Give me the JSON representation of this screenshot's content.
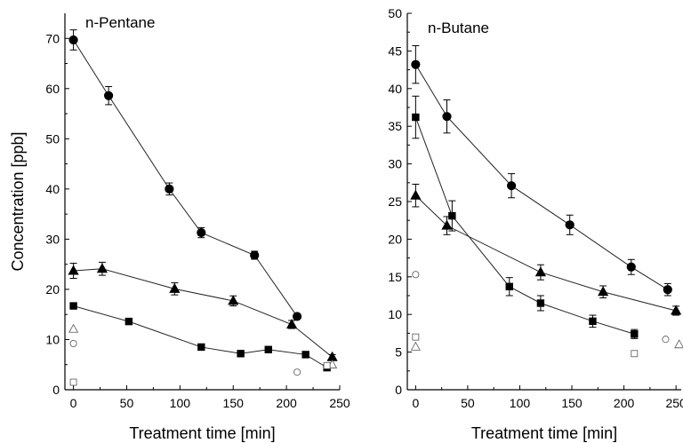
{
  "chart_data": [
    {
      "type": "scatter",
      "title": "n-Pentane",
      "xlabel": "Treatment time [min]",
      "ylabel": "Concentration [ppb]",
      "xlim": [
        -8,
        250
      ],
      "ylim": [
        0,
        75
      ],
      "xticks": [
        0,
        50,
        100,
        150,
        200,
        250
      ],
      "yticks": [
        0,
        10,
        20,
        30,
        40,
        50,
        60,
        70
      ],
      "series": [
        {
          "marker": "circle",
          "filled": true,
          "connected": true,
          "x": [
            0,
            33,
            90,
            120,
            170,
            210
          ],
          "y": [
            69.7,
            58.6,
            40.0,
            31.3,
            26.8,
            14.6
          ],
          "err": [
            2.0,
            1.8,
            1.2,
            1.0,
            0.8,
            0
          ]
        },
        {
          "marker": "triangle",
          "filled": true,
          "connected": true,
          "x": [
            0,
            27,
            95,
            150,
            205,
            243
          ],
          "y": [
            23.7,
            24.1,
            20.1,
            17.7,
            13.0,
            6.5
          ],
          "err": [
            1.5,
            1.3,
            1.2,
            1.0,
            0.8,
            0.5
          ]
        },
        {
          "marker": "square",
          "filled": true,
          "connected": true,
          "x": [
            0,
            52,
            120,
            157,
            183,
            218,
            238
          ],
          "y": [
            16.7,
            13.6,
            8.5,
            7.2,
            8.0,
            7.0,
            4.4
          ],
          "err": [
            0,
            0,
            0,
            0,
            0,
            0,
            0.5
          ]
        },
        {
          "marker": "circle",
          "filled": false,
          "connected": false,
          "x": [
            0,
            210
          ],
          "y": [
            9.2,
            3.5
          ],
          "err": [
            0,
            0
          ]
        },
        {
          "marker": "triangle",
          "filled": false,
          "connected": false,
          "x": [
            0,
            243
          ],
          "y": [
            12.1,
            5.0
          ],
          "err": [
            0,
            0
          ]
        },
        {
          "marker": "square",
          "filled": false,
          "connected": false,
          "x": [
            0,
            238
          ],
          "y": [
            1.5,
            4.8
          ],
          "err": [
            0,
            0
          ]
        }
      ]
    },
    {
      "type": "scatter",
      "title": "n-Butane",
      "xlabel": "Treatment time [min]",
      "ylabel": "",
      "xlim": [
        -8,
        255
      ],
      "ylim": [
        0,
        50
      ],
      "xticks": [
        0,
        50,
        100,
        150,
        200,
        250
      ],
      "yticks": [
        0,
        5,
        10,
        15,
        20,
        25,
        30,
        35,
        40,
        45,
        50
      ],
      "series": [
        {
          "marker": "circle",
          "filled": true,
          "connected": true,
          "x": [
            0,
            30,
            92,
            148,
            207,
            242
          ],
          "y": [
            43.2,
            36.3,
            27.1,
            21.9,
            16.3,
            13.3
          ],
          "err": [
            2.5,
            2.2,
            1.6,
            1.3,
            1.0,
            0.8
          ]
        },
        {
          "marker": "triangle",
          "filled": true,
          "connected": true,
          "x": [
            0,
            30,
            120,
            180,
            250
          ],
          "y": [
            25.8,
            21.8,
            15.6,
            13.0,
            10.5
          ],
          "err": [
            1.5,
            1.2,
            1.0,
            0.8,
            0.6
          ]
        },
        {
          "marker": "square",
          "filled": true,
          "connected": true,
          "x": [
            0,
            35,
            90,
            120,
            170,
            210
          ],
          "y": [
            36.2,
            23.1,
            13.7,
            11.5,
            9.1,
            7.4
          ],
          "err": [
            2.8,
            2.0,
            1.2,
            1.0,
            0.8,
            0.6
          ]
        },
        {
          "marker": "circle",
          "filled": false,
          "connected": false,
          "x": [
            0,
            240
          ],
          "y": [
            15.3,
            6.7
          ],
          "err": [
            0,
            0
          ]
        },
        {
          "marker": "triangle",
          "filled": false,
          "connected": false,
          "x": [
            0,
            253
          ],
          "y": [
            5.7,
            6.0
          ],
          "err": [
            0,
            0
          ]
        },
        {
          "marker": "square",
          "filled": false,
          "connected": false,
          "x": [
            0,
            210
          ],
          "y": [
            7.0,
            4.8
          ],
          "err": [
            0,
            0
          ]
        }
      ]
    }
  ]
}
